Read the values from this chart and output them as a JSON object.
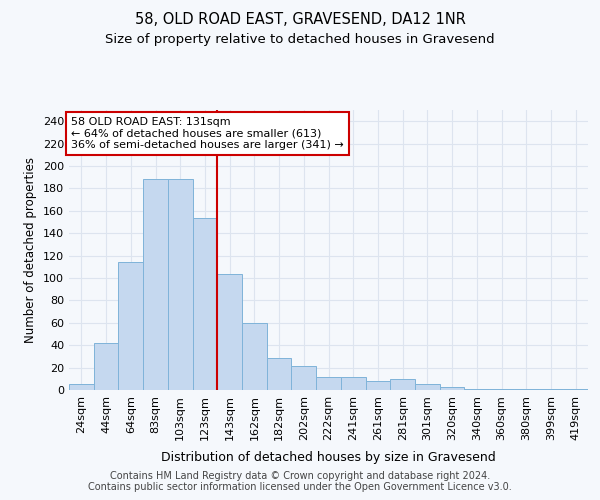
{
  "title": "58, OLD ROAD EAST, GRAVESEND, DA12 1NR",
  "subtitle": "Size of property relative to detached houses in Gravesend",
  "xlabel": "Distribution of detached houses by size in Gravesend",
  "ylabel": "Number of detached properties",
  "categories": [
    "24sqm",
    "44sqm",
    "64sqm",
    "83sqm",
    "103sqm",
    "123sqm",
    "143sqm",
    "162sqm",
    "182sqm",
    "202sqm",
    "222sqm",
    "241sqm",
    "261sqm",
    "281sqm",
    "301sqm",
    "320sqm",
    "340sqm",
    "360sqm",
    "380sqm",
    "399sqm",
    "419sqm"
  ],
  "values": [
    5,
    42,
    114,
    188,
    188,
    154,
    104,
    60,
    29,
    21,
    12,
    12,
    8,
    10,
    5,
    3,
    1,
    1,
    1,
    1,
    1
  ],
  "bar_color": "#c5d8ef",
  "bar_edge_color": "#7fb3d9",
  "ylim": [
    0,
    250
  ],
  "yticks": [
    0,
    20,
    40,
    60,
    80,
    100,
    120,
    140,
    160,
    180,
    200,
    220,
    240
  ],
  "vline_x": 5.5,
  "vline_color": "#cc0000",
  "annot_line1": "58 OLD ROAD EAST: 131sqm",
  "annot_line2": "← 64% of detached houses are smaller (613)",
  "annot_line3": "36% of semi-detached houses are larger (341) →",
  "annot_box_facecolor": "#ffffff",
  "annot_box_edgecolor": "#cc0000",
  "fig_facecolor": "#f5f8fc",
  "axes_facecolor": "#f5f8fc",
  "grid_color": "#dde4ef",
  "title_fontsize": 10.5,
  "subtitle_fontsize": 9.5,
  "xlabel_fontsize": 9,
  "ylabel_fontsize": 8.5,
  "tick_fontsize": 8,
  "annot_fontsize": 8,
  "footer_fontsize": 7,
  "footer_line1": "Contains HM Land Registry data © Crown copyright and database right 2024.",
  "footer_line2": "Contains public sector information licensed under the Open Government Licence v3.0."
}
